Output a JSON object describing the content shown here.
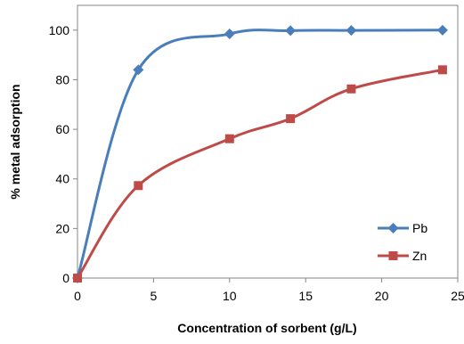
{
  "chart_data": {
    "type": "line",
    "xlabel": "Concentration of sorbent (g/L)",
    "ylabel": "% metal adsorption",
    "xlim": [
      0,
      25
    ],
    "ylim": [
      0,
      110
    ],
    "xticks": [
      0,
      5,
      10,
      15,
      20,
      25
    ],
    "yticks": [
      0,
      20,
      40,
      60,
      80,
      100
    ],
    "grid": false,
    "legend_position": "bottom-right",
    "series": [
      {
        "name": "Pb",
        "color": "#4A7EBB",
        "marker": "diamond",
        "x": [
          0,
          4,
          10,
          14,
          18,
          24
        ],
        "y": [
          0,
          84,
          98.5,
          99.8,
          99.9,
          100
        ]
      },
      {
        "name": "Zn",
        "color": "#BE4B48",
        "marker": "square",
        "x": [
          0,
          4,
          10,
          14,
          18,
          24
        ],
        "y": [
          0,
          37.3,
          56.2,
          64.3,
          76.3,
          84
        ]
      }
    ]
  }
}
